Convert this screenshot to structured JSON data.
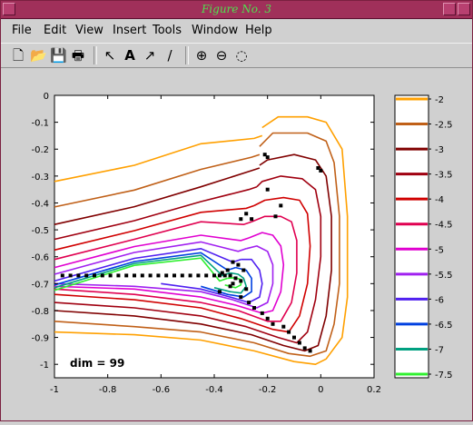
{
  "window": {
    "title": "Figure No. 3"
  },
  "menu": [
    "File",
    "Edit",
    "View",
    "Insert",
    "Tools",
    "Window",
    "Help"
  ],
  "toolbar": [
    {
      "name": "new-file-icon",
      "glyph": "🗋"
    },
    {
      "name": "open-folder-icon",
      "glyph": "📂"
    },
    {
      "name": "save-icon",
      "glyph": "💾"
    },
    {
      "name": "print-icon",
      "glyph": "🖶"
    },
    {
      "name": "select-arrow-icon",
      "glyph": "↖"
    },
    {
      "name": "insert-text-icon",
      "glyph": "A"
    },
    {
      "name": "insert-arrow-icon",
      "glyph": "↗"
    },
    {
      "name": "insert-line-icon",
      "glyph": "/"
    },
    {
      "name": "zoom-in-icon",
      "glyph": "⊕"
    },
    {
      "name": "zoom-out-icon",
      "glyph": "⊖"
    },
    {
      "name": "rotate-icon",
      "glyph": "◌"
    }
  ],
  "chart_data": {
    "type": "contour",
    "xlim": [
      -1,
      0.2
    ],
    "ylim": [
      -1.05,
      0
    ],
    "xticks": [
      "-1",
      "-0.8",
      "-0.6",
      "-0.4",
      "-0.2",
      "0",
      "0.2"
    ],
    "yticks": [
      "0",
      "-0.1",
      "-0.2",
      "-0.3",
      "-0.4",
      "-0.5",
      "-0.6",
      "-0.7",
      "-0.8",
      "-0.9",
      "-1"
    ],
    "annotation": "dim = 99",
    "colorbar": {
      "labels": [
        "-2",
        "-2.5",
        "-3",
        "-3.5",
        "-4",
        "-4.5",
        "-5",
        "-5.5",
        "-6",
        "-6.5",
        "-7",
        "-7.5"
      ],
      "colors": [
        "#ffa000",
        "#c06018",
        "#800000",
        "#a00010",
        "#d00000",
        "#e00050",
        "#e000d0",
        "#a020f0",
        "#5020f0",
        "#0040e0",
        "#00a080",
        "#30f030"
      ]
    },
    "contour_levels": [
      {
        "level": -2,
        "color": "#ffa000",
        "left_y": -0.32,
        "corner": [
          -0.04,
          -0.96
        ],
        "bend": [
          -0.02,
          -0.11
        ],
        "hook": [
          -0.22,
          -0.15
        ]
      },
      {
        "level": -2.5,
        "color": "#c06018",
        "left_y": -0.415,
        "corner": [
          -0.05,
          -0.94
        ],
        "bend": [
          -0.05,
          -0.19
        ],
        "hook": [
          -0.23,
          -0.22
        ]
      },
      {
        "level": -3,
        "color": "#800000",
        "left_y": -0.48,
        "corner": [
          -0.06,
          -0.92
        ],
        "bend": [
          -0.08,
          -0.25
        ],
        "hook": [
          -0.23,
          -0.27
        ]
      },
      {
        "level": -3.5,
        "color": "#a00010",
        "left_y": -0.535,
        "corner": [
          -0.08,
          -0.89
        ],
        "bend": [
          -0.12,
          -0.33
        ],
        "hook": [
          -0.24,
          -0.34
        ]
      },
      {
        "level": -4,
        "color": "#d00000",
        "left_y": -0.575,
        "corner": [
          -0.1,
          -0.86
        ],
        "bend": [
          -0.16,
          -0.4
        ],
        "hook": [
          -0.25,
          -0.41
        ]
      },
      {
        "level": -4.5,
        "color": "#e00050",
        "left_y": -0.61,
        "corner": [
          -0.13,
          -0.84
        ],
        "bend": [
          -0.2,
          -0.46
        ],
        "hook": [
          -0.26,
          -0.47
        ]
      },
      {
        "level": -5,
        "color": "#e000d0",
        "left_y": -0.64,
        "corner": [
          -0.16,
          -0.82
        ],
        "bend": [
          -0.22,
          -0.52
        ],
        "hook": [
          -0.27,
          -0.53
        ]
      },
      {
        "level": -5.5,
        "color": "#a020f0",
        "left_y": -0.665,
        "corner": [
          -0.19,
          -0.8
        ],
        "bend": [
          -0.24,
          -0.57
        ],
        "hook": [
          -0.28,
          -0.57
        ]
      },
      {
        "level": -6,
        "color": "#5020f0",
        "left_y": -0.69,
        "corner": [
          -0.22,
          -0.78
        ],
        "bend": [
          -0.27,
          -0.61
        ],
        "hook": [
          -0.3,
          -0.61
        ]
      },
      {
        "level": -6.5,
        "color": "#0040e0",
        "left_y": -0.705,
        "corner": [
          -0.26,
          -0.76
        ],
        "bend": [
          -0.3,
          -0.64
        ],
        "hook": [
          -0.32,
          -0.64
        ]
      },
      {
        "level": -7,
        "color": "#00a080",
        "left_y": -0.715,
        "corner": [
          -0.29,
          -0.74
        ],
        "bend": [
          -0.32,
          -0.66
        ],
        "hook": [
          -0.34,
          -0.66
        ]
      },
      {
        "level": -7.5,
        "color": "#30f030",
        "left_y": -0.725,
        "corner": [
          -0.31,
          -0.72
        ],
        "bend": [
          -0.33,
          -0.675
        ],
        "hook": [
          -0.35,
          -0.68
        ]
      }
    ],
    "extra_contours": [
      {
        "color": "#ffa000",
        "points": [
          [
            -1.0,
            -0.88
          ],
          [
            -0.7,
            -0.89
          ],
          [
            -0.45,
            -0.91
          ],
          [
            -0.25,
            -0.95
          ],
          [
            -0.1,
            -0.99
          ],
          [
            -0.02,
            -1.0
          ],
          [
            0.02,
            -0.98
          ],
          [
            0.08,
            -0.9
          ],
          [
            0.1,
            -0.75
          ],
          [
            0.1,
            -0.45
          ],
          [
            0.08,
            -0.2
          ],
          [
            0.02,
            -0.1
          ],
          [
            -0.05,
            -0.08
          ],
          [
            -0.16,
            -0.08
          ],
          [
            -0.22,
            -0.12
          ]
        ]
      },
      {
        "color": "#c06018",
        "points": [
          [
            -1.0,
            -0.84
          ],
          [
            -0.7,
            -0.86
          ],
          [
            -0.45,
            -0.88
          ],
          [
            -0.25,
            -0.92
          ],
          [
            -0.12,
            -0.96
          ],
          [
            -0.04,
            -0.97
          ],
          [
            0.02,
            -0.95
          ],
          [
            0.05,
            -0.85
          ],
          [
            0.07,
            -0.7
          ],
          [
            0.07,
            -0.45
          ],
          [
            0.05,
            -0.25
          ],
          [
            0.02,
            -0.17
          ],
          [
            -0.05,
            -0.14
          ],
          [
            -0.18,
            -0.14
          ],
          [
            -0.23,
            -0.19
          ]
        ]
      },
      {
        "color": "#800000",
        "points": [
          [
            -1.0,
            -0.8
          ],
          [
            -0.7,
            -0.82
          ],
          [
            -0.45,
            -0.85
          ],
          [
            -0.26,
            -0.89
          ],
          [
            -0.14,
            -0.93
          ],
          [
            -0.06,
            -0.95
          ],
          [
            -0.01,
            -0.93
          ],
          [
            0.02,
            -0.82
          ],
          [
            0.04,
            -0.65
          ],
          [
            0.04,
            -0.45
          ],
          [
            0.02,
            -0.3
          ],
          [
            -0.02,
            -0.24
          ],
          [
            -0.1,
            -0.22
          ],
          [
            -0.2,
            -0.24
          ],
          [
            -0.23,
            -0.26
          ]
        ]
      },
      {
        "color": "#a00010",
        "points": [
          [
            -1.0,
            -0.77
          ],
          [
            -0.7,
            -0.79
          ],
          [
            -0.45,
            -0.82
          ],
          [
            -0.28,
            -0.86
          ],
          [
            -0.16,
            -0.9
          ],
          [
            -0.09,
            -0.92
          ],
          [
            -0.05,
            -0.88
          ],
          [
            -0.02,
            -0.76
          ],
          [
            0.0,
            -0.6
          ],
          [
            0.0,
            -0.45
          ],
          [
            -0.02,
            -0.35
          ],
          [
            -0.07,
            -0.31
          ],
          [
            -0.15,
            -0.3
          ],
          [
            -0.22,
            -0.32
          ],
          [
            -0.24,
            -0.34
          ]
        ]
      },
      {
        "color": "#d00000",
        "points": [
          [
            -1.0,
            -0.74
          ],
          [
            -0.7,
            -0.76
          ],
          [
            -0.45,
            -0.79
          ],
          [
            -0.3,
            -0.83
          ],
          [
            -0.18,
            -0.87
          ],
          [
            -0.12,
            -0.88
          ],
          [
            -0.08,
            -0.82
          ],
          [
            -0.05,
            -0.7
          ],
          [
            -0.04,
            -0.56
          ],
          [
            -0.05,
            -0.44
          ],
          [
            -0.08,
            -0.39
          ],
          [
            -0.14,
            -0.38
          ],
          [
            -0.21,
            -0.39
          ],
          [
            -0.25,
            -0.41
          ]
        ]
      },
      {
        "color": "#e00050",
        "points": [
          [
            -1.0,
            -0.72
          ],
          [
            -0.7,
            -0.74
          ],
          [
            -0.45,
            -0.77
          ],
          [
            -0.31,
            -0.8
          ],
          [
            -0.2,
            -0.84
          ],
          [
            -0.15,
            -0.84
          ],
          [
            -0.11,
            -0.77
          ],
          [
            -0.09,
            -0.66
          ],
          [
            -0.09,
            -0.54
          ],
          [
            -0.11,
            -0.47
          ],
          [
            -0.15,
            -0.45
          ],
          [
            -0.21,
            -0.45
          ],
          [
            -0.26,
            -0.47
          ]
        ]
      },
      {
        "color": "#e000d0",
        "points": [
          [
            -1.0,
            -0.71
          ],
          [
            -0.7,
            -0.72
          ],
          [
            -0.45,
            -0.75
          ],
          [
            -0.32,
            -0.78
          ],
          [
            -0.22,
            -0.81
          ],
          [
            -0.18,
            -0.8
          ],
          [
            -0.15,
            -0.73
          ],
          [
            -0.14,
            -0.63
          ],
          [
            -0.15,
            -0.56
          ],
          [
            -0.18,
            -0.52
          ],
          [
            -0.22,
            -0.51
          ],
          [
            -0.27,
            -0.53
          ]
        ]
      },
      {
        "color": "#a020f0",
        "points": [
          [
            -1.0,
            -0.7
          ],
          [
            -0.7,
            -0.71
          ],
          [
            -0.45,
            -0.73
          ],
          [
            -0.33,
            -0.76
          ],
          [
            -0.24,
            -0.79
          ],
          [
            -0.2,
            -0.77
          ],
          [
            -0.18,
            -0.7
          ],
          [
            -0.18,
            -0.63
          ],
          [
            -0.2,
            -0.58
          ],
          [
            -0.24,
            -0.56
          ],
          [
            -0.28,
            -0.57
          ]
        ]
      },
      {
        "color": "#5020f0",
        "points": [
          [
            -0.6,
            -0.7
          ],
          [
            -0.45,
            -0.72
          ],
          [
            -0.34,
            -0.75
          ],
          [
            -0.27,
            -0.77
          ],
          [
            -0.23,
            -0.75
          ],
          [
            -0.22,
            -0.7
          ],
          [
            -0.23,
            -0.65
          ],
          [
            -0.26,
            -0.61
          ],
          [
            -0.3,
            -0.61
          ]
        ]
      },
      {
        "color": "#0040e0",
        "points": [
          [
            -0.45,
            -0.71
          ],
          [
            -0.35,
            -0.74
          ],
          [
            -0.29,
            -0.75
          ],
          [
            -0.26,
            -0.73
          ],
          [
            -0.26,
            -0.68
          ],
          [
            -0.28,
            -0.65
          ],
          [
            -0.32,
            -0.64
          ]
        ]
      },
      {
        "color": "#00a080",
        "points": [
          [
            -0.4,
            -0.715
          ],
          [
            -0.34,
            -0.73
          ],
          [
            -0.3,
            -0.735
          ],
          [
            -0.28,
            -0.71
          ],
          [
            -0.29,
            -0.68
          ],
          [
            -0.31,
            -0.665
          ],
          [
            -0.34,
            -0.66
          ]
        ]
      },
      {
        "color": "#30f030",
        "points": [
          [
            -0.36,
            -0.705
          ],
          [
            -0.32,
            -0.715
          ],
          [
            -0.3,
            -0.705
          ],
          [
            -0.3,
            -0.685
          ],
          [
            -0.32,
            -0.678
          ],
          [
            -0.35,
            -0.68
          ]
        ]
      }
    ],
    "points": [
      [
        -0.97,
        -0.67
      ],
      [
        -0.94,
        -0.67
      ],
      [
        -0.91,
        -0.67
      ],
      [
        -0.88,
        -0.67
      ],
      [
        -0.85,
        -0.67
      ],
      [
        -0.82,
        -0.67
      ],
      [
        -0.79,
        -0.67
      ],
      [
        -0.76,
        -0.67
      ],
      [
        -0.73,
        -0.67
      ],
      [
        -0.7,
        -0.67
      ],
      [
        -0.67,
        -0.67
      ],
      [
        -0.64,
        -0.67
      ],
      [
        -0.61,
        -0.67
      ],
      [
        -0.58,
        -0.67
      ],
      [
        -0.55,
        -0.67
      ],
      [
        -0.52,
        -0.67
      ],
      [
        -0.49,
        -0.67
      ],
      [
        -0.46,
        -0.67
      ],
      [
        -0.43,
        -0.67
      ],
      [
        -0.4,
        -0.67
      ],
      [
        -0.38,
        -0.67
      ],
      [
        -0.36,
        -0.67
      ],
      [
        -0.34,
        -0.67
      ],
      [
        -0.32,
        -0.68
      ],
      [
        -0.3,
        -0.69
      ],
      [
        -0.37,
        -0.66
      ],
      [
        -0.35,
        -0.65
      ],
      [
        -0.33,
        -0.62
      ],
      [
        -0.31,
        -0.63
      ],
      [
        -0.29,
        -0.65
      ],
      [
        -0.28,
        -0.72
      ],
      [
        -0.3,
        -0.75
      ],
      [
        -0.27,
        -0.77
      ],
      [
        -0.25,
        -0.79
      ],
      [
        -0.22,
        -0.81
      ],
      [
        -0.2,
        -0.83
      ],
      [
        -0.18,
        -0.85
      ],
      [
        -0.14,
        -0.86
      ],
      [
        -0.12,
        -0.88
      ],
      [
        -0.1,
        -0.9
      ],
      [
        -0.08,
        -0.92
      ],
      [
        -0.06,
        -0.94
      ],
      [
        -0.04,
        -0.95
      ],
      [
        -0.3,
        -0.46
      ],
      [
        -0.28,
        -0.44
      ],
      [
        -0.26,
        -0.46
      ],
      [
        -0.17,
        -0.45
      ],
      [
        -0.15,
        -0.41
      ],
      [
        -0.2,
        -0.23
      ],
      [
        -0.21,
        -0.22
      ],
      [
        -0.01,
        -0.27
      ],
      [
        0.0,
        -0.28
      ],
      [
        -0.2,
        -0.35
      ],
      [
        -0.38,
        -0.73
      ],
      [
        -0.34,
        -0.71
      ],
      [
        -0.33,
        -0.7
      ]
    ]
  }
}
